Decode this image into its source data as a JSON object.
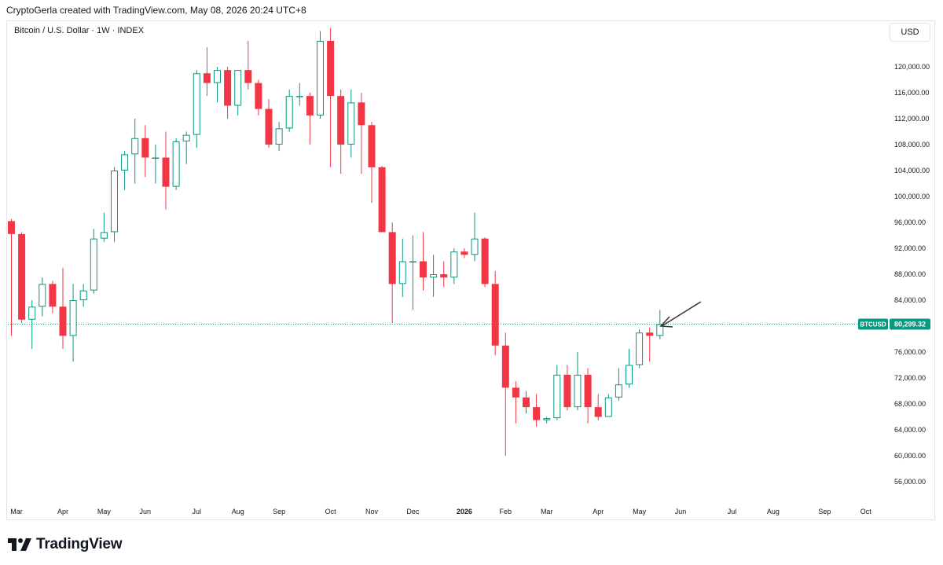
{
  "header": {
    "attribution": "CryptoGerla created with TradingView.com, May 08, 2026 20:24 UTC+8"
  },
  "chart_header": {
    "symbol_title": "Bitcoin / U.S. Dollar · 1W · INDEX",
    "currency_button": "USD"
  },
  "brand": {
    "name": "TradingView"
  },
  "colors": {
    "up": "#089981",
    "down": "#f23645",
    "axis_text": "#131722",
    "price_tag_bg": "#089981"
  },
  "chart_data": {
    "type": "candlestick",
    "title": "Bitcoin / U.S. Dollar · 1W · INDEX",
    "ylim": [
      52000,
      124000
    ],
    "y_ticks": [
      56000,
      60000,
      64000,
      68000,
      72000,
      76000,
      80000,
      84000,
      88000,
      92000,
      96000,
      100000,
      104000,
      108000,
      112000,
      116000,
      120000
    ],
    "y_tick_labels": [
      "56,000.00",
      "60,000.00",
      "64,000.00",
      "68,000.00",
      "72,000.00",
      "76,000.00",
      "80,000.00",
      "84,000.00",
      "88,000.00",
      "92,000.00",
      "96,000.00",
      "100,000.00",
      "104,000.00",
      "108,000.00",
      "112,000.00",
      "116,000.00",
      "120,000.00"
    ],
    "x_labels": [
      {
        "label": "Mar",
        "week": 0.5
      },
      {
        "label": "Apr",
        "week": 5
      },
      {
        "label": "May",
        "week": 9
      },
      {
        "label": "Jun",
        "week": 13
      },
      {
        "label": "Jul",
        "week": 18
      },
      {
        "label": "Aug",
        "week": 22
      },
      {
        "label": "Sep",
        "week": 26
      },
      {
        "label": "Oct",
        "week": 31
      },
      {
        "label": "Nov",
        "week": 35
      },
      {
        "label": "Dec",
        "week": 39
      },
      {
        "label": "2026",
        "week": 44
      },
      {
        "label": "Feb",
        "week": 48
      },
      {
        "label": "Mar",
        "week": 52
      },
      {
        "label": "Apr",
        "week": 57
      },
      {
        "label": "May",
        "week": 61
      },
      {
        "label": "Jun",
        "week": 65
      },
      {
        "label": "Jul",
        "week": 70
      },
      {
        "label": "Aug",
        "week": 74
      },
      {
        "label": "Sep",
        "week": 79
      },
      {
        "label": "Oct",
        "week": 83
      }
    ],
    "candles": [
      {
        "o": 96200,
        "h": 96500,
        "l": 78500,
        "c": 94200
      },
      {
        "o": 94200,
        "h": 94500,
        "l": 80500,
        "c": 81000
      },
      {
        "o": 81000,
        "h": 84000,
        "l": 76500,
        "c": 83000
      },
      {
        "o": 83000,
        "h": 87500,
        "l": 81500,
        "c": 86500
      },
      {
        "o": 86500,
        "h": 87000,
        "l": 82000,
        "c": 83000
      },
      {
        "o": 83000,
        "h": 89000,
        "l": 76500,
        "c": 78500
      },
      {
        "o": 78500,
        "h": 86500,
        "l": 74500,
        "c": 84000
      },
      {
        "o": 84000,
        "h": 86500,
        "l": 83000,
        "c": 85500
      },
      {
        "o": 85500,
        "h": 95000,
        "l": 85000,
        "c": 93500
      },
      {
        "o": 93500,
        "h": 97500,
        "l": 93000,
        "c": 94500
      },
      {
        "o": 94500,
        "h": 104500,
        "l": 93000,
        "c": 104000
      },
      {
        "o": 104000,
        "h": 107000,
        "l": 101000,
        "c": 106500
      },
      {
        "o": 106500,
        "h": 112000,
        "l": 102000,
        "c": 109000
      },
      {
        "o": 109000,
        "h": 111000,
        "l": 103000,
        "c": 106000
      },
      {
        "o": 106000,
        "h": 108000,
        "l": 102000,
        "c": 106000
      },
      {
        "o": 106000,
        "h": 110000,
        "l": 98000,
        "c": 101500
      },
      {
        "o": 101500,
        "h": 109000,
        "l": 101000,
        "c": 108500
      },
      {
        "o": 108500,
        "h": 110000,
        "l": 105000,
        "c": 109500
      },
      {
        "o": 109500,
        "h": 119500,
        "l": 107500,
        "c": 119000
      },
      {
        "o": 119000,
        "h": 123000,
        "l": 115500,
        "c": 117500
      },
      {
        "o": 117500,
        "h": 120000,
        "l": 114500,
        "c": 119500
      },
      {
        "o": 119500,
        "h": 120000,
        "l": 112000,
        "c": 114000
      },
      {
        "o": 114000,
        "h": 119500,
        "l": 112500,
        "c": 119500
      },
      {
        "o": 119500,
        "h": 124000,
        "l": 116500,
        "c": 117500
      },
      {
        "o": 117500,
        "h": 118000,
        "l": 112500,
        "c": 113500
      },
      {
        "o": 113500,
        "h": 115000,
        "l": 107500,
        "c": 108000
      },
      {
        "o": 108000,
        "h": 111500,
        "l": 107000,
        "c": 110500
      },
      {
        "o": 110500,
        "h": 116500,
        "l": 110000,
        "c": 115500
      },
      {
        "o": 115500,
        "h": 117500,
        "l": 114000,
        "c": 115500
      },
      {
        "o": 115500,
        "h": 116000,
        "l": 108000,
        "c": 112500
      },
      {
        "o": 112500,
        "h": 125500,
        "l": 112000,
        "c": 124000
      },
      {
        "o": 124000,
        "h": 126000,
        "l": 104500,
        "c": 115500
      },
      {
        "o": 115500,
        "h": 116500,
        "l": 103500,
        "c": 108000
      },
      {
        "o": 108000,
        "h": 116500,
        "l": 106000,
        "c": 114500
      },
      {
        "o": 114500,
        "h": 116000,
        "l": 103500,
        "c": 111000
      },
      {
        "o": 111000,
        "h": 111500,
        "l": 99000,
        "c": 104500
      },
      {
        "o": 104500,
        "h": 104700,
        "l": 94500,
        "c": 94500
      },
      {
        "o": 94500,
        "h": 96000,
        "l": 80500,
        "c": 86500
      },
      {
        "o": 86500,
        "h": 93500,
        "l": 84500,
        "c": 90000
      },
      {
        "o": 90000,
        "h": 94000,
        "l": 82500,
        "c": 90000
      },
      {
        "o": 90000,
        "h": 94500,
        "l": 85500,
        "c": 87500
      },
      {
        "o": 87500,
        "h": 91000,
        "l": 84500,
        "c": 88000
      },
      {
        "o": 88000,
        "h": 90000,
        "l": 86000,
        "c": 87500
      },
      {
        "o": 87500,
        "h": 92000,
        "l": 86500,
        "c": 91500
      },
      {
        "o": 91500,
        "h": 92000,
        "l": 90500,
        "c": 91000
      },
      {
        "o": 91000,
        "h": 97500,
        "l": 90000,
        "c": 93500
      },
      {
        "o": 93500,
        "h": 93700,
        "l": 86000,
        "c": 86500
      },
      {
        "o": 86500,
        "h": 88500,
        "l": 75500,
        "c": 77000
      },
      {
        "o": 77000,
        "h": 79000,
        "l": 60000,
        "c": 70500
      },
      {
        "o": 70500,
        "h": 71500,
        "l": 65000,
        "c": 69000
      },
      {
        "o": 69000,
        "h": 70000,
        "l": 66500,
        "c": 67500
      },
      {
        "o": 67500,
        "h": 69500,
        "l": 64500,
        "c": 65500
      },
      {
        "o": 65500,
        "h": 66000,
        "l": 65000,
        "c": 65800
      },
      {
        "o": 65800,
        "h": 74000,
        "l": 65500,
        "c": 72500
      },
      {
        "o": 72500,
        "h": 74000,
        "l": 67000,
        "c": 67500
      },
      {
        "o": 67500,
        "h": 76000,
        "l": 67000,
        "c": 72500
      },
      {
        "o": 72500,
        "h": 73500,
        "l": 65000,
        "c": 67500
      },
      {
        "o": 67500,
        "h": 69500,
        "l": 65500,
        "c": 66000
      },
      {
        "o": 66000,
        "h": 69500,
        "l": 66000,
        "c": 69000
      },
      {
        "o": 69000,
        "h": 73500,
        "l": 68500,
        "c": 71000
      },
      {
        "o": 71000,
        "h": 76500,
        "l": 70500,
        "c": 74000
      },
      {
        "o": 74000,
        "h": 79500,
        "l": 73500,
        "c": 79000
      },
      {
        "o": 79000,
        "h": 79800,
        "l": 74500,
        "c": 78500
      },
      {
        "o": 78500,
        "h": 82500,
        "l": 78000,
        "c": 80299.32
      }
    ],
    "last_price": {
      "symbol": "BTCUSD",
      "value": 80299.32,
      "label": "80,299.32"
    }
  }
}
